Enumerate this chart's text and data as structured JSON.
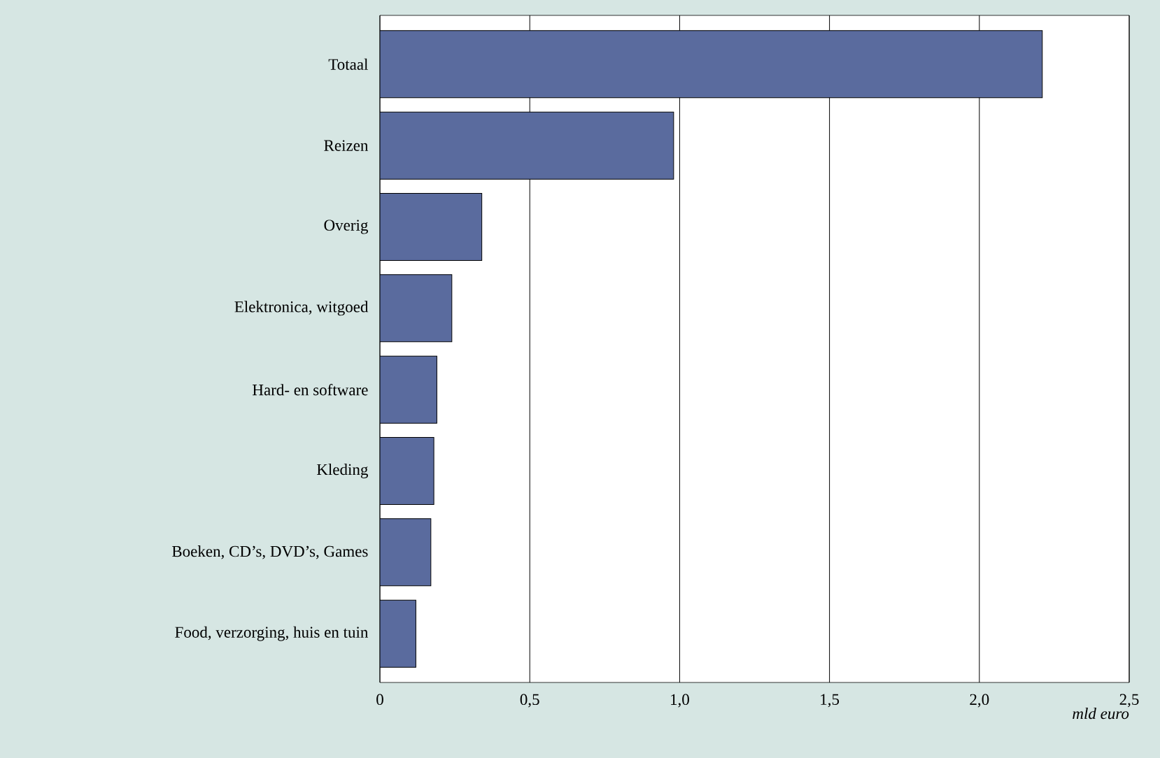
{
  "chart_data": {
    "type": "bar",
    "orientation": "horizontal",
    "xlabel": "mld euro",
    "categories": [
      "Totaal",
      "Reizen",
      "Overig",
      "Elektronica, witgoed",
      "Hard- en software",
      "Kleding",
      "Boeken, CD’s, DVD’s, Games",
      "Food, verzorging, huis en tuin"
    ],
    "values": [
      2.21,
      0.98,
      0.34,
      0.24,
      0.19,
      0.18,
      0.17,
      0.12
    ],
    "color": "#5a6b9e",
    "xlim": [
      0,
      2.5
    ],
    "xticks": [
      0,
      {
        "value": 0.5,
        "label": "0,5"
      },
      {
        "value": 1.0,
        "label": "1,0"
      },
      {
        "value": 1.5,
        "label": "1,5"
      },
      {
        "value": 2.0,
        "label": "2,0"
      },
      {
        "value": 2.5,
        "label": "2,5"
      }
    ],
    "grid": "x"
  }
}
